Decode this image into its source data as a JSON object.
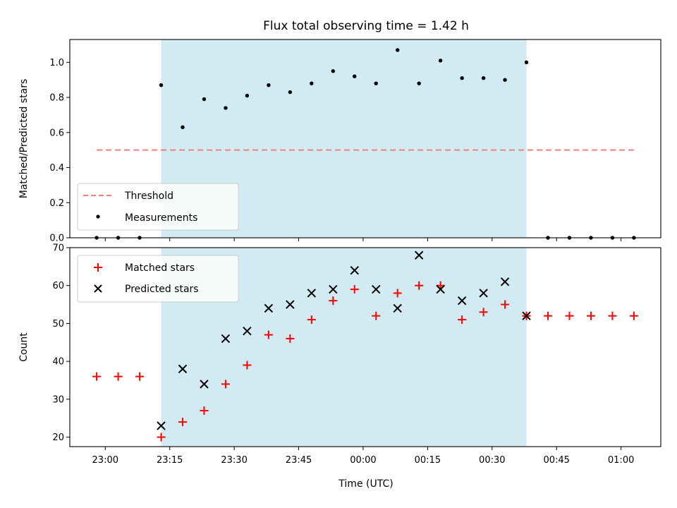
{
  "chart_data": [
    {
      "type": "scatter",
      "title": "Flux total observing time = 1.42 h",
      "xlabel": "",
      "ylabel": "Matched/Predicted stars",
      "ylim": [
        0,
        1.13
      ],
      "yticks": [
        "0.0",
        "0.2",
        "0.4",
        "0.6",
        "0.8",
        "1.0"
      ],
      "grid": false,
      "legend": {
        "position": "bottom-left",
        "entries": [
          "Threshold",
          "Measurements"
        ]
      },
      "shaded_interval": {
        "start": "23:13",
        "end": "00:38",
        "color": "#add8e6"
      },
      "threshold": {
        "name": "Threshold",
        "value": 0.5,
        "x_start": "22:58",
        "x_end": "01:03",
        "color": "#f08080",
        "style": "dashed"
      },
      "series": [
        {
          "name": "Measurements",
          "color": "#000000",
          "x": [
            "22:58",
            "23:03",
            "23:08",
            "23:13",
            "23:18",
            "23:23",
            "23:28",
            "23:33",
            "23:38",
            "23:43",
            "23:48",
            "23:53",
            "23:58",
            "00:03",
            "00:08",
            "00:13",
            "00:18",
            "00:23",
            "00:28",
            "00:33",
            "00:38",
            "00:43",
            "00:48",
            "00:53",
            "00:58",
            "01:03"
          ],
          "y": [
            0.0,
            0.0,
            0.0,
            0.87,
            0.63,
            0.79,
            0.74,
            0.81,
            0.87,
            0.83,
            0.88,
            0.95,
            0.92,
            0.88,
            1.07,
            0.88,
            1.01,
            0.91,
            0.91,
            0.9,
            1.0,
            0.0,
            0.0,
            0.0,
            0.0,
            0.0
          ]
        }
      ]
    },
    {
      "type": "scatter",
      "title": "",
      "xlabel": "Time (UTC)",
      "ylabel": "Count",
      "ylim": [
        17.5,
        70
      ],
      "yticks": [
        "20",
        "30",
        "40",
        "50",
        "60",
        "70"
      ],
      "xticks": [
        "23:00",
        "23:15",
        "23:30",
        "23:45",
        "00:00",
        "00:15",
        "00:30",
        "00:45",
        "01:00"
      ],
      "grid": false,
      "legend": {
        "position": "top-left",
        "entries": [
          "Matched stars",
          "Predicted stars"
        ]
      },
      "shaded_interval": {
        "start": "23:13",
        "end": "00:38",
        "color": "#add8e6"
      },
      "series": [
        {
          "name": "Matched stars",
          "marker": "plus",
          "color": "#ff0000",
          "x": [
            "22:58",
            "23:03",
            "23:08",
            "23:13",
            "23:18",
            "23:23",
            "23:28",
            "23:33",
            "23:38",
            "23:43",
            "23:48",
            "23:53",
            "23:58",
            "00:03",
            "00:08",
            "00:13",
            "00:18",
            "00:23",
            "00:28",
            "00:33",
            "00:38",
            "00:43",
            "00:48",
            "00:53",
            "00:58",
            "01:03"
          ],
          "y": [
            36,
            36,
            36,
            20,
            24,
            27,
            34,
            39,
            47,
            46,
            51,
            56,
            59,
            52,
            58,
            60,
            60,
            51,
            53,
            55,
            52,
            52,
            52,
            52,
            52,
            52
          ]
        },
        {
          "name": "Predicted stars",
          "marker": "x",
          "color": "#000000",
          "x": [
            "23:13",
            "23:18",
            "23:23",
            "23:28",
            "23:33",
            "23:38",
            "23:43",
            "23:48",
            "23:53",
            "23:58",
            "00:03",
            "00:08",
            "00:13",
            "00:18",
            "00:23",
            "00:28",
            "00:33",
            "00:38"
          ],
          "y": [
            23,
            38,
            34,
            46,
            48,
            54,
            55,
            58,
            59,
            64,
            59,
            54,
            68,
            59,
            56,
            58,
            61,
            52
          ]
        }
      ]
    }
  ]
}
